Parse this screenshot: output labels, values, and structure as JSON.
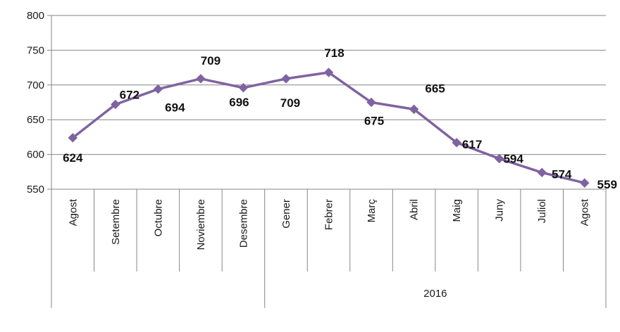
{
  "chart_data": {
    "type": "line",
    "categories": [
      "Agost",
      "Setembre",
      "Octubre",
      "Noviembre",
      "Desembre",
      "Gener",
      "Febrer",
      "Març",
      "Abril",
      "Maig",
      "Juny",
      "Juliol",
      "Agost"
    ],
    "category_groups": [
      {
        "label": "",
        "start": 0,
        "end": 4
      },
      {
        "label": "2016",
        "start": 5,
        "end": 12
      }
    ],
    "series": [
      {
        "values": [
          624,
          672,
          694,
          709,
          696,
          709,
          718,
          675,
          665,
          617,
          594,
          574,
          559
        ],
        "color": "#7f63a1"
      }
    ],
    "data_labels": [
      "624",
      "672",
      "694",
      "709",
      "696",
      "709",
      "718",
      "675",
      "665",
      "617",
      "594",
      "574",
      "559"
    ],
    "ylim": [
      550,
      800
    ],
    "yticks": [
      550,
      600,
      650,
      700,
      750,
      800
    ],
    "grid": true,
    "legend": "none",
    "title": "",
    "xlabel": "",
    "ylabel": ""
  }
}
